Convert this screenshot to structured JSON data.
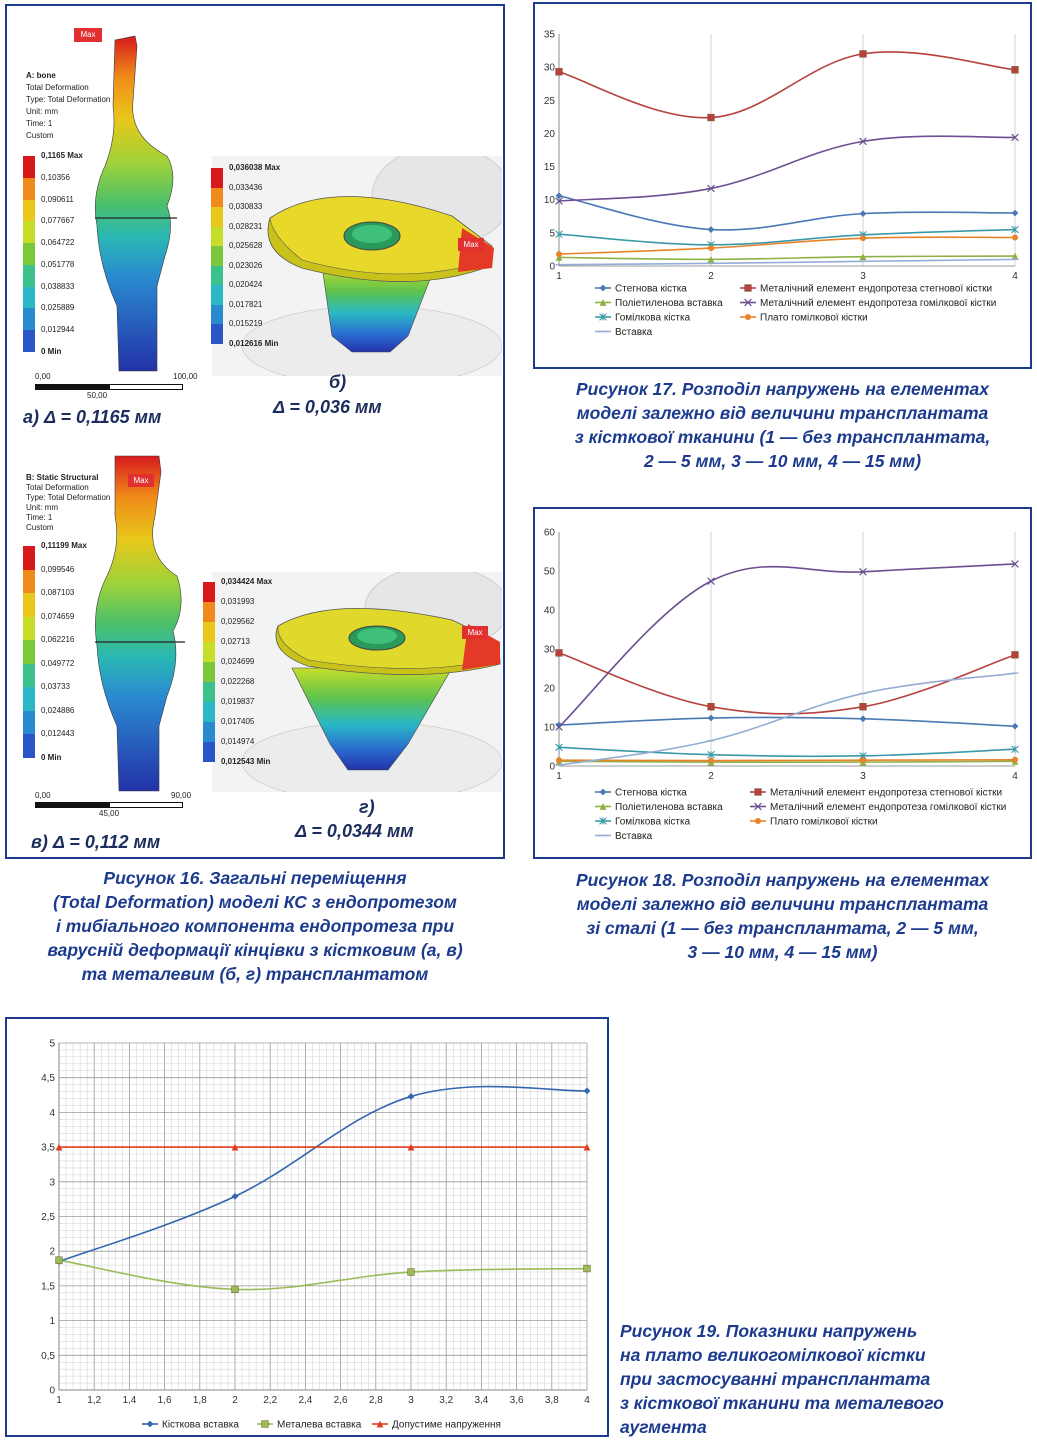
{
  "fig16": {
    "panel_a": {
      "max_tag": "Max",
      "info": [
        "A: bone",
        "Total Deformation",
        "Type: Total Deformation",
        "Unit: mm",
        "Time: 1",
        "Custom"
      ],
      "legend": [
        "0,1165 Max",
        "0,10356",
        "0,090611",
        "0,077667",
        "0,064722",
        "0,051778",
        "0,038833",
        "0,025889",
        "0,012944",
        "0 Min"
      ],
      "scale": [
        "0,00",
        "50,00",
        "100,00"
      ],
      "label_prefix": "а)",
      "delta": "Δ = 0,1165 мм"
    },
    "panel_b": {
      "max_tag": "Max",
      "legend": [
        "0,036038 Max",
        "0,033436",
        "0,030833",
        "0,028231",
        "0,025628",
        "0,023026",
        "0,020424",
        "0,017821",
        "0,015219",
        "0,012616 Min"
      ],
      "label_prefix": "б)",
      "delta": "Δ = 0,036 мм"
    },
    "panel_c": {
      "max_tag": "Max",
      "info": [
        "B: Static Structural",
        "Total Deformation",
        "Type: Total Deformation",
        "Unit: mm",
        "Time: 1",
        "Custom"
      ],
      "legend": [
        "0,11199 Max",
        "0,099546",
        "0,087103",
        "0,074659",
        "0,062216",
        "0,049772",
        "0,03733",
        "0,024886",
        "0,012443",
        "0 Min"
      ],
      "scale": [
        "0,00",
        "45,00",
        "90,00"
      ],
      "label_prefix": "в)",
      "delta": "Δ = 0,112 мм"
    },
    "panel_d": {
      "max_tag": "Max",
      "legend": [
        "0,034424 Max",
        "0,031993",
        "0,029562",
        "0,02713",
        "0,024699",
        "0,022268",
        "0,019837",
        "0,017405",
        "0,014974",
        "0,012543 Min"
      ],
      "label_prefix": "г)",
      "delta": "Δ = 0,0344 мм"
    },
    "legend_colors": [
      "#d7191c",
      "#f08a1a",
      "#e8c81a",
      "#c6de2a",
      "#7cc83a",
      "#3cc08c",
      "#2ab8c4",
      "#2a8ad0",
      "#2a56c8",
      "#2332a8"
    ],
    "caption": [
      "Рисунок 16. Загальні переміщення",
      "(Total Deformation) моделі КС з ендопротезом",
      "і тибіального компонента ендопротеза при",
      "варусній деформації кінцівки з кістковим (а, в)",
      "та металевим (б, г) трансплантатом"
    ]
  },
  "chart_data": [
    {
      "type": "line",
      "id": "fig17",
      "x": [
        1,
        2,
        3,
        4
      ],
      "xlim": [
        1,
        4
      ],
      "ylim": [
        0,
        35
      ],
      "yticks": [
        0,
        5,
        10,
        15,
        20,
        25,
        30,
        35
      ],
      "grid": "vertical",
      "legend_position": "bottom",
      "series": [
        {
          "name": "Стегнова кістка",
          "values": [
            10.6,
            5.5,
            7.9,
            8.0
          ],
          "color": "#4a79b5",
          "marker": "diamond"
        },
        {
          "name": "Металічний елемент ендопротеза стегнової кістки",
          "values": [
            29.3,
            22.4,
            32.0,
            29.6
          ],
          "color": "#b7413e",
          "marker": "square"
        },
        {
          "name": "Поліетиленова вставка",
          "values": [
            1.3,
            1.0,
            1.4,
            1.5
          ],
          "color": "#8eb044",
          "marker": "triangle"
        },
        {
          "name": "Металічний елемент ендопротеза гомілкової кістки",
          "values": [
            9.8,
            11.7,
            18.8,
            19.4
          ],
          "color": "#6c4f91",
          "marker": "x"
        },
        {
          "name": "Гомілкова кістка",
          "values": [
            4.8,
            3.2,
            4.7,
            5.5
          ],
          "color": "#3a99a8",
          "marker": "star"
        },
        {
          "name": "Плато гомілкової кістки",
          "values": [
            1.8,
            2.7,
            4.2,
            4.3
          ],
          "color": "#e8832a",
          "marker": "circle"
        },
        {
          "name": "Вставка",
          "values": [
            0.2,
            0.4,
            0.7,
            1.0
          ],
          "color": "#93add6",
          "marker": "line"
        }
      ]
    },
    {
      "type": "line",
      "id": "fig18",
      "x": [
        1,
        2,
        3,
        4
      ],
      "xlim": [
        1,
        4
      ],
      "ylim": [
        0,
        60
      ],
      "yticks": [
        0,
        10,
        20,
        30,
        40,
        50,
        60
      ],
      "grid": "vertical",
      "legend_position": "bottom",
      "series": [
        {
          "name": "Стегнова кістка",
          "values": [
            10.5,
            12.3,
            12.1,
            10.2
          ],
          "color": "#4a79b5",
          "marker": "diamond"
        },
        {
          "name": "Металічний елемент ендопротеза стегнової кістки",
          "values": [
            29.0,
            15.2,
            15.2,
            28.5
          ],
          "color": "#b7413e",
          "marker": "square"
        },
        {
          "name": "Поліетиленова вставка",
          "values": [
            1.2,
            1.0,
            1.0,
            1.2
          ],
          "color": "#8eb044",
          "marker": "triangle"
        },
        {
          "name": "Металічний елемент ендопротеза гомілкової кістки",
          "values": [
            10.0,
            47.4,
            49.8,
            51.8
          ],
          "color": "#6c4f91",
          "marker": "x"
        },
        {
          "name": "Гомілкова кістка",
          "values": [
            4.8,
            2.9,
            2.6,
            4.3
          ],
          "color": "#3a99a8",
          "marker": "star"
        },
        {
          "name": "Плато гомілкової кістки",
          "values": [
            1.5,
            1.4,
            1.5,
            1.6
          ],
          "color": "#e8832a",
          "marker": "circle"
        },
        {
          "name": "Вставка",
          "values": [
            0.2,
            6.5,
            18.6,
            23.8
          ],
          "color": "#93add6",
          "marker": "line"
        }
      ]
    },
    {
      "type": "line",
      "id": "fig19",
      "x": [
        1,
        2,
        3,
        4
      ],
      "xlim": [
        1,
        4
      ],
      "xticks": [
        1,
        1.2,
        1.4,
        1.6,
        1.8,
        2,
        2.2,
        2.4,
        2.6,
        2.8,
        3,
        3.2,
        3.4,
        3.6,
        3.8,
        4
      ],
      "ylim": [
        0,
        5
      ],
      "yticks": [
        0,
        0.5,
        1,
        1.5,
        2,
        2.5,
        3,
        3.5,
        4,
        4.5,
        5
      ],
      "grid": "both-minor",
      "legend_position": "bottom",
      "series": [
        {
          "name": "Кісткова вставка",
          "values": [
            1.85,
            2.79,
            4.23,
            4.31
          ],
          "color": "#3466b0",
          "marker": "diamond"
        },
        {
          "name": "Металева вставка",
          "values": [
            1.87,
            1.45,
            1.7,
            1.75
          ],
          "color": "#9bbb59",
          "marker": "square"
        },
        {
          "name": "Допустиме напруження",
          "values": [
            3.5,
            3.5,
            3.5,
            3.5
          ],
          "color": "#e03c1e",
          "marker": "triangle"
        }
      ]
    }
  ],
  "fig17": {
    "xticks": [
      "1",
      "2",
      "3",
      "4"
    ],
    "yticks": [
      "0",
      "5",
      "10",
      "15",
      "20",
      "25",
      "30",
      "35"
    ],
    "caption": [
      "Рисунок 17. Розподіл напружень на елементах",
      "моделі залежно від величини трансплантата",
      "з кісткової тканини (1 — без трансплантата,",
      "2 — 5 мм, 3 — 10 мм, 4 — 15 мм)"
    ]
  },
  "fig18": {
    "xticks": [
      "1",
      "2",
      "3",
      "4"
    ],
    "yticks": [
      "0",
      "10",
      "20",
      "30",
      "40",
      "50",
      "60"
    ],
    "caption": [
      "Рисунок 18. Розподіл напружень на елементах",
      "моделі залежно від величини трансплантата",
      "зі сталі (1 — без трансплантата, 2 — 5 мм,",
      "3 — 10 мм, 4 — 15 мм)"
    ]
  },
  "fig19": {
    "xticks": [
      "1",
      "1,2",
      "1,4",
      "1,6",
      "1,8",
      "2",
      "2,2",
      "2,4",
      "2,6",
      "2,8",
      "3",
      "3,2",
      "3,4",
      "3,6",
      "3,8",
      "4"
    ],
    "yticks": [
      "0",
      "0,5",
      "1",
      "1,5",
      "2",
      "2,5",
      "3",
      "3,5",
      "4",
      "4,5",
      "5"
    ],
    "caption": [
      "Рисунок 19. Показники напружень",
      "на плато великогомілкової кістки",
      "при застосуванні трансплантата",
      "з кісткової тканини та металевого",
      "аугмента"
    ]
  }
}
